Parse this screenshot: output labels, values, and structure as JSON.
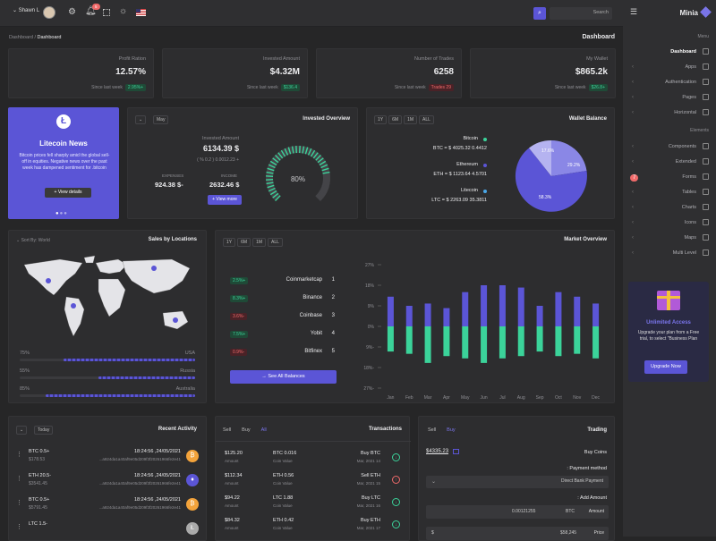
{
  "topbar": {
    "user": "Shawn L",
    "notif_count": "5",
    "search_placeholder": "Search"
  },
  "sidebar": {
    "brand": "Minia",
    "section_menu": "Menu",
    "section_elements": "Elements",
    "items_menu": [
      "Dashboard",
      "Apps",
      "Authentication",
      "Pages",
      "Horizontal"
    ],
    "items_elements": [
      "Components",
      "Extended",
      "Forms",
      "Tables",
      "Charts",
      "Icons",
      "Maps",
      "Multi Level"
    ],
    "forms_badge": "7",
    "promo_title": "Unlimited Access",
    "promo_text": "Upgrade your plan from a Free trial, to select \"Business Plan",
    "promo_button": "Upgrade Now"
  },
  "breadcrumb": {
    "root": "Dashboard",
    "current": "Dashboard"
  },
  "page_title": "Dashboard",
  "stats": [
    {
      "label": "Profit Ration",
      "value": "12.57%",
      "since": "Since last week",
      "badge": "2.95%+",
      "badge_type": "g"
    },
    {
      "label": "Invested Amount",
      "value": "$4.32M",
      "since": "Since last week",
      "badge": "$136.4",
      "badge_type": "g"
    },
    {
      "label": "Number of Trades",
      "value": "6258",
      "since": "Since last week",
      "badge": "Trades 29",
      "badge_type": "r"
    },
    {
      "label": "My Wallet",
      "value": "$865.2k",
      "since": "Since last week",
      "badge": "$26.8+",
      "badge_type": "g"
    }
  ],
  "news": {
    "title": "Litecoin News",
    "body": "Bitcoin prices fell sharply amid the global sell-off in equities. Negative news over the past week has dampened sentiment for .bitcoin",
    "button": "View details"
  },
  "invested": {
    "title": "Invested Overview",
    "dropdown": "May",
    "label": "Invested Amount",
    "amount": "6134.39 $",
    "change": "( % 0.2 ) 0.0012.23 +",
    "expenses_label": "EXPENSES",
    "expenses_value": "924.38 $-",
    "income_label": "INCOME",
    "income_value": "2632.46 $",
    "button": "View more",
    "gauge_value": "80%",
    "gauge_fraction": 0.8
  },
  "wallet": {
    "title": "Wallet Balance",
    "ranges": [
      "1Y",
      "6M",
      "1M",
      "ALL"
    ],
    "coins": [
      {
        "name": "Bitcoin",
        "line": "BTC = $ 4025.32 0.4412",
        "color": "#3bd39a"
      },
      {
        "name": "Ethereum",
        "line": "ETH = $ 1123.64 4.5701",
        "color": "#5b55d6"
      },
      {
        "name": "Litecoin",
        "line": "LTC = $ 2263.09 35.3811",
        "color": "#4aa8e8"
      }
    ],
    "pie_labels": [
      "17.6%",
      "29.2%",
      "58.3%"
    ]
  },
  "locations": {
    "title": "Sales by Locations",
    "sort": "Sort By: World",
    "rows": [
      {
        "pct": "75%",
        "country": "USA",
        "fraction": 0.75
      },
      {
        "pct": "55%",
        "country": "Russia",
        "fraction": 0.55
      },
      {
        "pct": "85%",
        "country": "Australia",
        "fraction": 0.85
      }
    ]
  },
  "market": {
    "title": "Market Overview",
    "ranges": [
      "1Y",
      "6M",
      "1M",
      "ALL"
    ],
    "exchanges": [
      {
        "rank": "1",
        "name": "Coinmarketcap",
        "badge": "2.5%+",
        "type": "g"
      },
      {
        "rank": "2",
        "name": "Binance",
        "badge": "8.3%+",
        "type": "g"
      },
      {
        "rank": "3",
        "name": "Coinbase",
        "badge": "3.6%-",
        "type": "r"
      },
      {
        "rank": "4",
        "name": "Yobit",
        "badge": "7.5%+",
        "type": "g"
      },
      {
        "rank": "5",
        "name": "Bitfinex",
        "badge": "0.9%-",
        "type": "r"
      }
    ],
    "button": "See All Balances"
  },
  "activity": {
    "title": "Recent Activity",
    "dropdown": "Today",
    "rows": [
      {
        "coin": "BTC 0.5+",
        "amount": "$178.53",
        "time": "18:24:56 ,24/05/2021",
        "hash": "...a924da1a40af9e05d209f3f20261966fe2e41"
      },
      {
        "coin": "ETH 20.5-",
        "amount": "$3541.45",
        "time": "18:24:56 ,24/05/2021",
        "hash": "...a924da1a40af9e05d209f3f20261966fe2e41"
      },
      {
        "coin": "BTC 0.5+",
        "amount": "$5791.45",
        "time": "18:24:56 ,24/05/2021",
        "hash": "...a924da1a40af9e05d209f3f20261966fe2e41"
      },
      {
        "coin": "LTC 1.5-",
        "amount": "",
        "time": "",
        "hash": ""
      }
    ]
  },
  "transactions": {
    "title": "Transactions",
    "tabs": [
      "Sell",
      "Buy",
      "All"
    ],
    "rows": [
      {
        "amount": "$125.20",
        "amount_label": "Amount",
        "coin": "BTC 0.016",
        "coin_label": "Coin Value",
        "type": "Buy BTC",
        "date": "Mar, 2021 14",
        "dir": "in"
      },
      {
        "amount": "$112.34",
        "amount_label": "Amount",
        "coin": "ETH 0.56",
        "coin_label": "Coin Value",
        "type": "Sell ETH",
        "date": "Mar, 2021 15",
        "dir": "out"
      },
      {
        "amount": "$94.22",
        "amount_label": "Amount",
        "coin": "LTC 1.88",
        "coin_label": "Coin Value",
        "type": "Buy LTC",
        "date": "Mar, 2021 16",
        "dir": "in"
      },
      {
        "amount": "$84.32",
        "amount_label": "Amount",
        "coin": "ETH 0.42",
        "coin_label": "Coin Value",
        "type": "Buy ETH",
        "date": "Mar, 2021 17",
        "dir": "in"
      }
    ]
  },
  "trading": {
    "title": "Trading",
    "tabs": [
      "Sell",
      "Buy"
    ],
    "balance": "$4335.23",
    "buy_label": "Buy Coins",
    "payment_label": ": Payment method",
    "payment_value": "Direct Bank Payment",
    "add_amount": ": Add Amount",
    "amount_value": "0.00121255",
    "coin": "BTC",
    "amount_label": "Amount",
    "price_prefix": "$",
    "price_value": "$58,245",
    "price_label": "Price"
  },
  "chart_data": {
    "type": "bar",
    "categories": [
      "Jan",
      "Feb",
      "Mar",
      "Apr",
      "May",
      "Jun",
      "Jul",
      "Aug",
      "Sep",
      "Oct",
      "Nov",
      "Dec"
    ],
    "series": [
      {
        "name": "",
        "values": [
          13,
          9,
          10,
          8,
          15,
          18,
          18,
          17,
          9,
          15,
          13,
          10
        ],
        "color": "#5b55d6"
      },
      {
        "name": "",
        "values": [
          -11,
          -12,
          -16,
          -13,
          -14,
          -16,
          -14,
          -13,
          -11,
          -13,
          -12,
          -14
        ],
        "color": "#3bd39a"
      }
    ],
    "ylim": [
      -27,
      27
    ],
    "yticks": [
      "27%",
      "18%",
      "9%",
      "0%",
      "9%-",
      "18%-",
      "27%-"
    ],
    "title": "Market Overview"
  }
}
